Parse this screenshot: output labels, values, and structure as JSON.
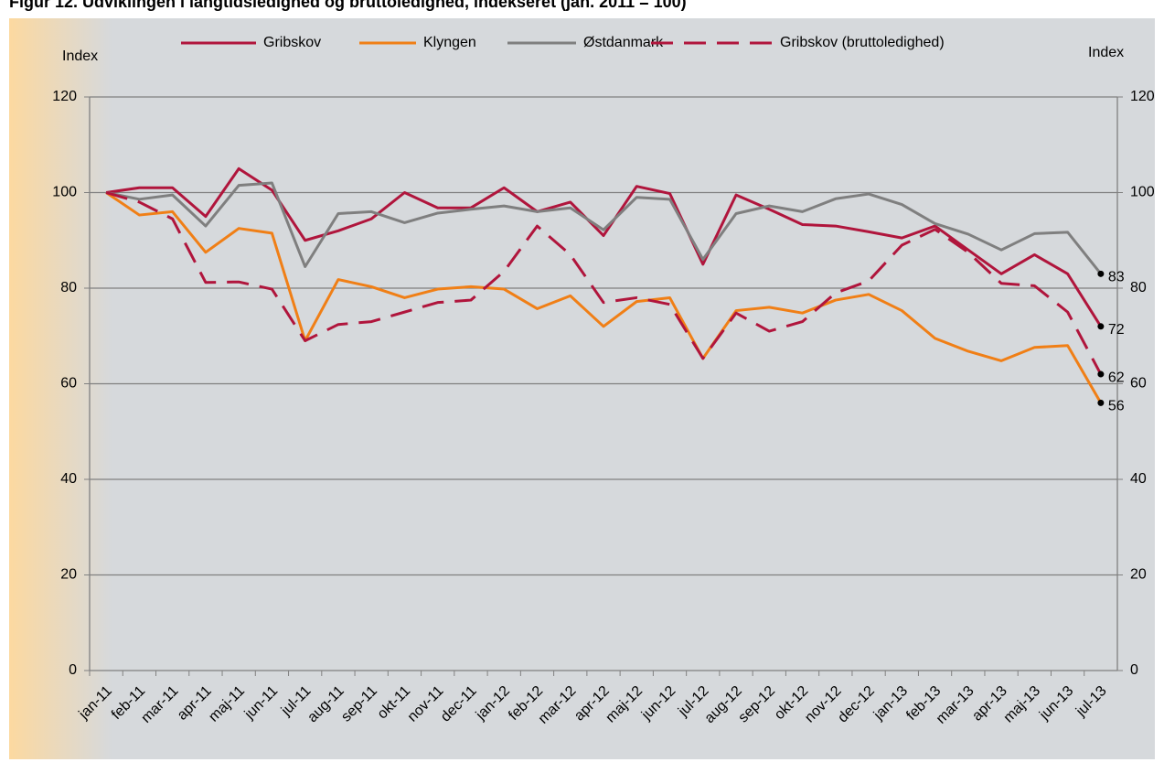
{
  "chart_data": {
    "type": "line",
    "title": "Figur 12. Udviklingen i langtidsledighed og bruttoledighed, indekseret (jan. 2011 = 100)",
    "y_label": "Index",
    "y2_label": "Index",
    "categories": [
      "jan-11",
      "feb-11",
      "mar-11",
      "apr-11",
      "maj-11",
      "jun-11",
      "jul-11",
      "aug-11",
      "sep-11",
      "okt-11",
      "nov-11",
      "dec-11",
      "jan-12",
      "feb-12",
      "mar-12",
      "apr-12",
      "maj-12",
      "jun-12",
      "jul-12",
      "aug-12",
      "sep-12",
      "okt-12",
      "nov-12",
      "dec-12",
      "jan-13",
      "feb-13",
      "mar-13",
      "apr-13",
      "maj-13",
      "jun-13",
      "jul-13"
    ],
    "series": [
      {
        "name": "Gribskov",
        "color": "#b0153c",
        "dashed": false,
        "values": [
          100,
          101,
          101,
          95,
          105,
          100.5,
          90,
          92,
          94.5,
          100,
          96.8,
          96.8,
          101,
          96,
          98,
          91,
          101.3,
          99.8,
          85,
          99.5,
          96.5,
          93.3,
          93,
          91.8,
          90.5,
          93,
          88,
          83,
          87,
          83,
          72
        ]
      },
      {
        "name": "Klyngen",
        "color": "#f07f16",
        "dashed": false,
        "values": [
          100,
          95.3,
          96,
          87.5,
          92.5,
          91.5,
          69,
          81.8,
          80.3,
          78,
          79.8,
          80.3,
          79.8,
          75.7,
          78.4,
          72,
          77.2,
          78,
          65.3,
          75.3,
          76,
          74.8,
          77.5,
          78.7,
          75.3,
          69.5,
          66.8,
          64.8,
          67.6,
          68,
          56
        ]
      },
      {
        "name": "Østdanmark",
        "color": "#7f7f7f",
        "dashed": false,
        "values": [
          100,
          98.6,
          99.5,
          93,
          101.5,
          102,
          84.5,
          95.6,
          96,
          93.7,
          95.7,
          96.5,
          97.2,
          96,
          96.8,
          92.2,
          99,
          98.6,
          86,
          95.6,
          97.2,
          96,
          98.7,
          99.7,
          97.5,
          93.5,
          91.3,
          88,
          91.4,
          91.7,
          83
        ]
      },
      {
        "name": "Gribskov (bruttoledighed)",
        "color": "#b0153c",
        "dashed": true,
        "values": [
          100,
          98,
          94.5,
          81.2,
          81.3,
          79.8,
          69,
          72.4,
          73,
          75,
          77,
          77.5,
          83.5,
          93,
          87,
          77,
          78,
          76.6,
          65.3,
          74.8,
          71,
          73,
          79,
          81.5,
          89,
          92.3,
          87.5,
          81,
          80.5,
          75,
          62
        ]
      }
    ],
    "ylim": [
      0,
      120
    ],
    "yticks": [
      0,
      20,
      40,
      60,
      80,
      100,
      120
    ],
    "y2lim": [
      0,
      120
    ],
    "y2ticks": [
      0,
      20,
      40,
      60,
      80,
      100,
      120
    ],
    "grid": true
  }
}
